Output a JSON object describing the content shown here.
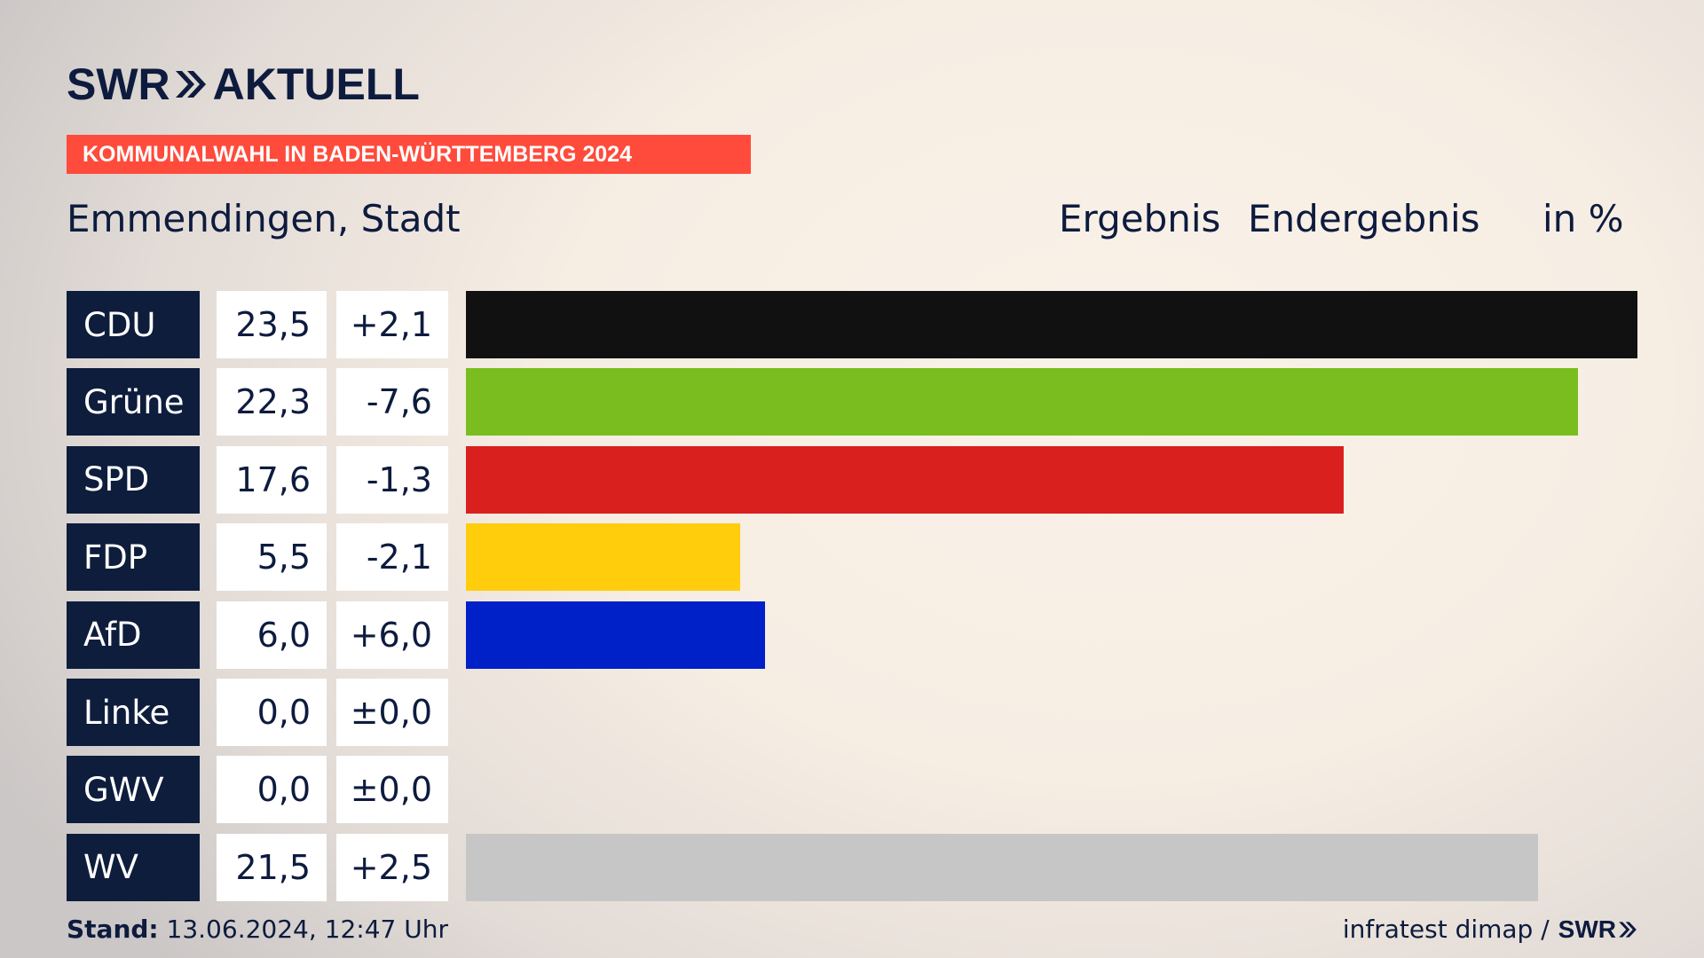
{
  "brand": {
    "name": "SWR",
    "product": "AKTUELL"
  },
  "banner": "KOMMUNALWAHL IN BADEN-WÜRTTEMBERG 2024",
  "region": "Emmendingen, Stadt",
  "headers": {
    "ergebnis": "Ergebnis",
    "endergebnis": "Endergebnis",
    "unit": "in %"
  },
  "chart_data": {
    "type": "bar",
    "categories": [
      "CDU",
      "Grüne",
      "SPD",
      "FDP",
      "AfD",
      "Linke",
      "GWV",
      "WV"
    ],
    "values": [
      23.5,
      22.3,
      17.6,
      5.5,
      6.0,
      0.0,
      0.0,
      21.5
    ],
    "value_labels": [
      "23,5",
      "22,3",
      "17,6",
      "5,5",
      "6,0",
      "0,0",
      "0,0",
      "21,5"
    ],
    "diff_labels": [
      "+2,1",
      "-7,6",
      "-1,3",
      "-2,1",
      "+6,0",
      "±0,0",
      "±0,0",
      "+2,5"
    ],
    "colors": [
      "#111111",
      "#79be1e",
      "#d9201f",
      "#ffcd0b",
      "#0020c8",
      "#be3075",
      "#888888",
      "#c6c6c6"
    ],
    "orientation": "horizontal",
    "xlim": [
      0,
      23.5
    ]
  },
  "footer": {
    "stand_label": "Stand:",
    "stand_value": "13.06.2024, 12:47 Uhr",
    "source": "infratest dimap /",
    "source_brand": "SWR"
  }
}
